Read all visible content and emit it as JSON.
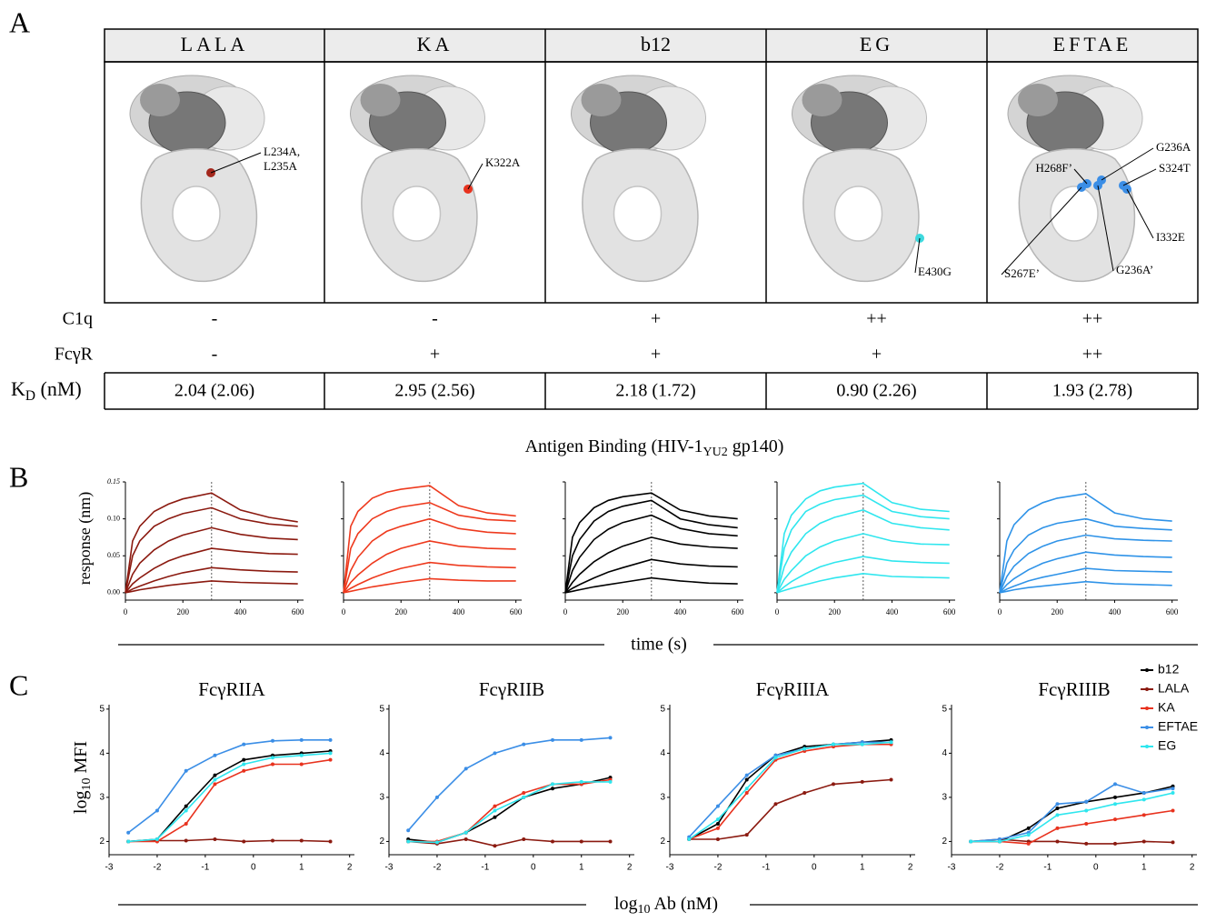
{
  "panel_a": {
    "label": "A",
    "columns": [
      {
        "name": "LALA",
        "color": "#a3271c",
        "mutations": [
          "L234A,",
          "L235A"
        ]
      },
      {
        "name": "KA",
        "color": "#e8321e",
        "mutations": [
          "K322A"
        ]
      },
      {
        "name": "b12",
        "color": "#000000",
        "mutations": []
      },
      {
        "name": "EG",
        "color": "#3fd9de",
        "mutations": [
          "E430G"
        ]
      },
      {
        "name": "EFTAE",
        "color": "#3b8ee6",
        "mutations": [
          "G236A",
          "H268F’",
          "S324T",
          "I332E",
          "S267E’",
          "G236A’"
        ]
      }
    ],
    "rows": [
      {
        "label": "C1q",
        "values": [
          "-",
          "-",
          "+",
          "++",
          "++"
        ]
      },
      {
        "label": "FcγR",
        "values": [
          "-",
          "+",
          "+",
          "+",
          "++"
        ]
      }
    ],
    "kd": {
      "label": "K",
      "label_sub": "D",
      "label_unit": " (nM)",
      "values": [
        "2.04 (2.06)",
        "2.95 (2.56)",
        "2.18 (1.72)",
        "0.90 (2.26)",
        "1.93 (2.78)"
      ]
    }
  },
  "panel_b": {
    "label": "B",
    "title": "Antigen Binding (HIV-1",
    "title_sub": "YU2",
    "title_end": " gp140)",
    "ylabel": "response (nm)",
    "xlabel": "time (s)",
    "type": "line",
    "x": [
      0,
      25,
      50,
      100,
      150,
      200,
      300,
      400,
      500,
      600
    ],
    "xlim": [
      0,
      620
    ],
    "xticks": [
      0,
      200,
      400,
      600
    ],
    "ylim": [
      -0.01,
      0.15
    ],
    "yticks": [
      {
        "value": 0,
        "label": "0.00"
      },
      {
        "value": 0.05,
        "label": "0.05"
      },
      {
        "value": 0.1,
        "label": "0.10"
      },
      {
        "value": 0.15,
        "label": "0.15"
      }
    ],
    "dissociation_start": 300,
    "charts": [
      {
        "color": "#8b1a10",
        "series": [
          {
            "values": [
              0,
              0.07,
              0.09,
              0.11,
              0.12,
              0.127,
              0.135,
              0.112,
              0.102,
              0.096
            ]
          },
          {
            "values": [
              0,
              0.05,
              0.07,
              0.09,
              0.1,
              0.107,
              0.115,
              0.1,
              0.093,
              0.09
            ]
          },
          {
            "values": [
              0,
              0.025,
              0.04,
              0.058,
              0.07,
              0.078,
              0.088,
              0.079,
              0.074,
              0.072
            ]
          },
          {
            "values": [
              0,
              0.012,
              0.02,
              0.033,
              0.043,
              0.05,
              0.06,
              0.056,
              0.053,
              0.052
            ]
          },
          {
            "values": [
              0,
              0.005,
              0.009,
              0.016,
              0.022,
              0.027,
              0.034,
              0.031,
              0.029,
              0.028
            ]
          },
          {
            "values": [
              0,
              0.002,
              0.004,
              0.007,
              0.01,
              0.012,
              0.016,
              0.014,
              0.013,
              0.012
            ]
          }
        ]
      },
      {
        "color": "#ee3a1e",
        "series": [
          {
            "values": [
              0,
              0.09,
              0.11,
              0.128,
              0.136,
              0.14,
              0.145,
              0.118,
              0.108,
              0.104
            ]
          },
          {
            "values": [
              0,
              0.06,
              0.08,
              0.1,
              0.11,
              0.116,
              0.122,
              0.105,
              0.099,
              0.097
            ]
          },
          {
            "values": [
              0,
              0.03,
              0.048,
              0.07,
              0.083,
              0.09,
              0.1,
              0.087,
              0.082,
              0.08
            ]
          },
          {
            "values": [
              0,
              0.014,
              0.024,
              0.04,
              0.052,
              0.06,
              0.07,
              0.063,
              0.06,
              0.059
            ]
          },
          {
            "values": [
              0,
              0.006,
              0.011,
              0.02,
              0.027,
              0.033,
              0.041,
              0.037,
              0.035,
              0.034
            ]
          },
          {
            "values": [
              0,
              0.002,
              0.004,
              0.008,
              0.011,
              0.014,
              0.019,
              0.017,
              0.016,
              0.016
            ]
          }
        ]
      },
      {
        "color": "#000000",
        "series": [
          {
            "values": [
              0,
              0.075,
              0.095,
              0.115,
              0.125,
              0.13,
              0.135,
              0.112,
              0.104,
              0.1
            ]
          },
          {
            "values": [
              0,
              0.05,
              0.072,
              0.097,
              0.11,
              0.117,
              0.125,
              0.1,
              0.092,
              0.088
            ]
          },
          {
            "values": [
              0,
              0.03,
              0.048,
              0.072,
              0.086,
              0.095,
              0.105,
              0.087,
              0.08,
              0.077
            ]
          },
          {
            "values": [
              0,
              0.014,
              0.025,
              0.042,
              0.054,
              0.063,
              0.075,
              0.066,
              0.062,
              0.06
            ]
          },
          {
            "values": [
              0,
              0.006,
              0.011,
              0.02,
              0.028,
              0.034,
              0.045,
              0.039,
              0.036,
              0.035
            ]
          },
          {
            "values": [
              0,
              0.002,
              0.004,
              0.008,
              0.011,
              0.014,
              0.02,
              0.016,
              0.013,
              0.012
            ]
          }
        ]
      },
      {
        "color": "#2fe6ee",
        "series": [
          {
            "values": [
              0,
              0.08,
              0.105,
              0.127,
              0.138,
              0.143,
              0.148,
              0.122,
              0.113,
              0.11
            ]
          },
          {
            "values": [
              0,
              0.06,
              0.085,
              0.11,
              0.12,
              0.126,
              0.132,
              0.11,
              0.103,
              0.1
            ]
          },
          {
            "values": [
              0,
              0.035,
              0.055,
              0.08,
              0.094,
              0.102,
              0.112,
              0.094,
              0.088,
              0.085
            ]
          },
          {
            "values": [
              0,
              0.018,
              0.03,
              0.05,
              0.062,
              0.07,
              0.08,
              0.07,
              0.066,
              0.065
            ]
          },
          {
            "values": [
              0,
              0.008,
              0.015,
              0.026,
              0.035,
              0.041,
              0.049,
              0.043,
              0.041,
              0.04
            ]
          },
          {
            "values": [
              0,
              0.003,
              0.006,
              0.011,
              0.016,
              0.02,
              0.026,
              0.022,
              0.021,
              0.02
            ]
          }
        ]
      },
      {
        "color": "#2f93e8",
        "series": [
          {
            "values": [
              0,
              0.07,
              0.092,
              0.112,
              0.122,
              0.128,
              0.134,
              0.108,
              0.1,
              0.097
            ]
          },
          {
            "values": [
              0,
              0.04,
              0.058,
              0.078,
              0.088,
              0.094,
              0.1,
              0.09,
              0.087,
              0.085
            ]
          },
          {
            "values": [
              0,
              0.022,
              0.036,
              0.053,
              0.063,
              0.07,
              0.078,
              0.073,
              0.071,
              0.07
            ]
          },
          {
            "values": [
              0,
              0.011,
              0.019,
              0.031,
              0.04,
              0.046,
              0.055,
              0.051,
              0.049,
              0.048
            ]
          },
          {
            "values": [
              0,
              0.005,
              0.009,
              0.016,
              0.021,
              0.025,
              0.033,
              0.03,
              0.029,
              0.028
            ]
          },
          {
            "values": [
              0,
              0.002,
              0.004,
              0.007,
              0.009,
              0.011,
              0.015,
              0.012,
              0.011,
              0.01
            ]
          }
        ]
      }
    ]
  },
  "panel_c": {
    "label": "C",
    "type": "line",
    "ylabel": "log",
    "ylabel_sub": "10",
    "ylabel_end": " MFI",
    "xlabel": "log",
    "xlabel_sub": "10",
    "xlabel_end": " Ab (nM)",
    "x": [
      -2.6,
      -2,
      -1.4,
      -0.8,
      -0.2,
      0.4,
      1,
      1.6
    ],
    "xlim": [
      -3,
      2.1
    ],
    "xticks": [
      -3,
      -2,
      -1,
      0,
      1,
      2
    ],
    "ylim": [
      1.7,
      5.1
    ],
    "yticks": [
      2,
      3,
      4,
      5
    ],
    "legend": "upper right",
    "series": [
      {
        "name": "b12",
        "color": "#000000"
      },
      {
        "name": "LALA",
        "color": "#8b1a10"
      },
      {
        "name": "KA",
        "color": "#e8321e"
      },
      {
        "name": "EFTAE",
        "color": "#3b8ee6"
      },
      {
        "name": "EG",
        "color": "#2fe6ee"
      }
    ],
    "charts": [
      {
        "title": "FcγRIIA",
        "values": [
          [
            2.0,
            2.05,
            2.8,
            3.5,
            3.85,
            3.95,
            4.0,
            4.05
          ],
          [
            2.0,
            2.02,
            2.02,
            2.05,
            2.0,
            2.02,
            2.02,
            2.0
          ],
          [
            2.0,
            2.0,
            2.4,
            3.3,
            3.6,
            3.75,
            3.75,
            3.85
          ],
          [
            2.2,
            2.7,
            3.6,
            3.95,
            4.2,
            4.28,
            4.3,
            4.3
          ],
          [
            2.0,
            2.05,
            2.7,
            3.4,
            3.75,
            3.9,
            3.95,
            4.0
          ]
        ]
      },
      {
        "title": "FcγRIIB",
        "values": [
          [
            2.05,
            1.98,
            2.2,
            2.55,
            3.0,
            3.2,
            3.3,
            3.45
          ],
          [
            2.0,
            1.95,
            2.05,
            1.9,
            2.05,
            2.0,
            2.0,
            2.0
          ],
          [
            2.0,
            2.0,
            2.2,
            2.8,
            3.1,
            3.3,
            3.3,
            3.4
          ],
          [
            2.25,
            3.0,
            3.65,
            4.0,
            4.2,
            4.3,
            4.3,
            4.35
          ],
          [
            2.0,
            1.98,
            2.2,
            2.7,
            3.0,
            3.3,
            3.35,
            3.35
          ]
        ]
      },
      {
        "title": "FcγRIIIA",
        "values": [
          [
            2.05,
            2.4,
            3.4,
            3.95,
            4.15,
            4.2,
            4.25,
            4.3
          ],
          [
            2.05,
            2.05,
            2.15,
            2.85,
            3.1,
            3.3,
            3.35,
            3.4
          ],
          [
            2.05,
            2.3,
            3.1,
            3.85,
            4.05,
            4.15,
            4.2,
            4.2
          ],
          [
            2.1,
            2.8,
            3.5,
            3.95,
            4.1,
            4.2,
            4.25,
            4.25
          ],
          [
            2.05,
            2.5,
            3.2,
            3.9,
            4.1,
            4.2,
            4.2,
            4.25
          ]
        ]
      },
      {
        "title": "FcγRIIIB",
        "values": [
          [
            2.0,
            2.0,
            2.3,
            2.75,
            2.9,
            3.0,
            3.1,
            3.25
          ],
          [
            2.0,
            2.05,
            2.0,
            2.0,
            1.95,
            1.95,
            2.0,
            1.98
          ],
          [
            2.0,
            2.0,
            1.95,
            2.3,
            2.4,
            2.5,
            2.6,
            2.7
          ],
          [
            2.0,
            2.05,
            2.2,
            2.85,
            2.9,
            3.3,
            3.1,
            3.2
          ],
          [
            2.0,
            2.0,
            2.15,
            2.6,
            2.7,
            2.85,
            2.95,
            3.1
          ]
        ]
      }
    ]
  }
}
